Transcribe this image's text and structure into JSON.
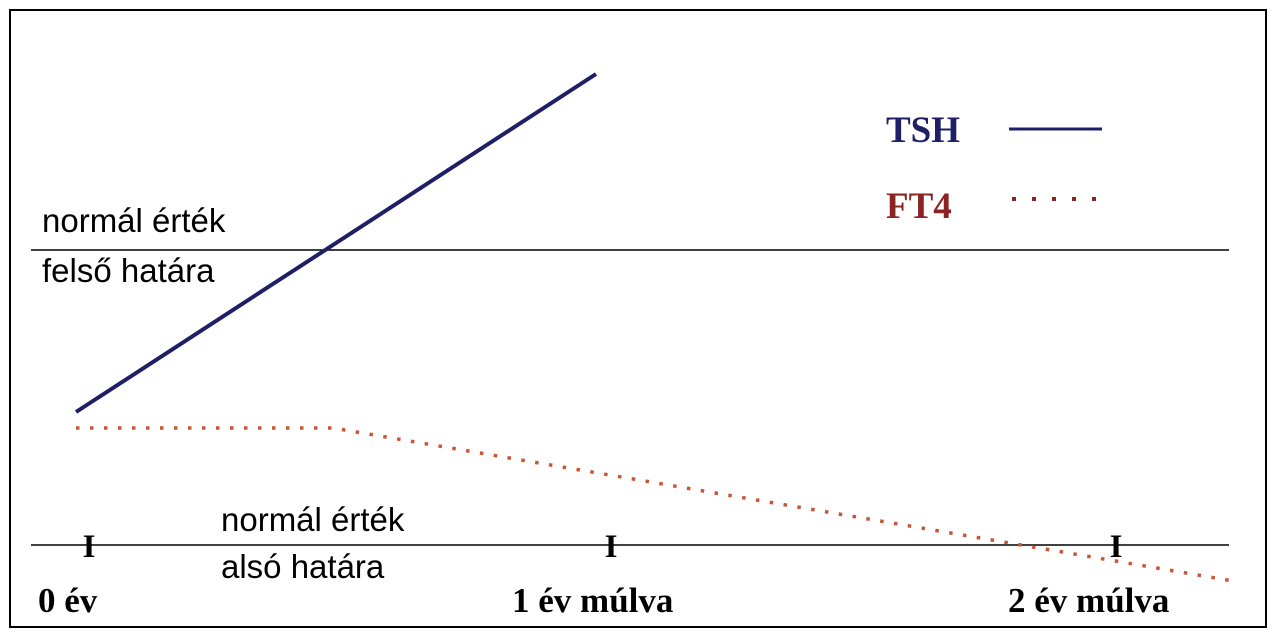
{
  "labels": {
    "upper_limit_line1": "normál érték",
    "upper_limit_line2": "felső határa",
    "lower_limit_line1": "normál érték",
    "lower_limit_line2": "alsó határa"
  },
  "axis": {
    "ticks": [
      {
        "mark": "I",
        "label": "0 év"
      },
      {
        "mark": "I",
        "label": "1 év múlva"
      },
      {
        "mark": "I",
        "label": "2 év múlva"
      }
    ]
  },
  "legend": {
    "items": [
      {
        "label": "TSH",
        "color": "#1f1f66",
        "style": "solid"
      },
      {
        "label": "FT4",
        "color": "#8b2323",
        "style": "dotted"
      }
    ]
  },
  "colors": {
    "tsh_line": "#1f1f66",
    "ft4_line": "#c8553a",
    "reference_line": "#000000"
  }
}
